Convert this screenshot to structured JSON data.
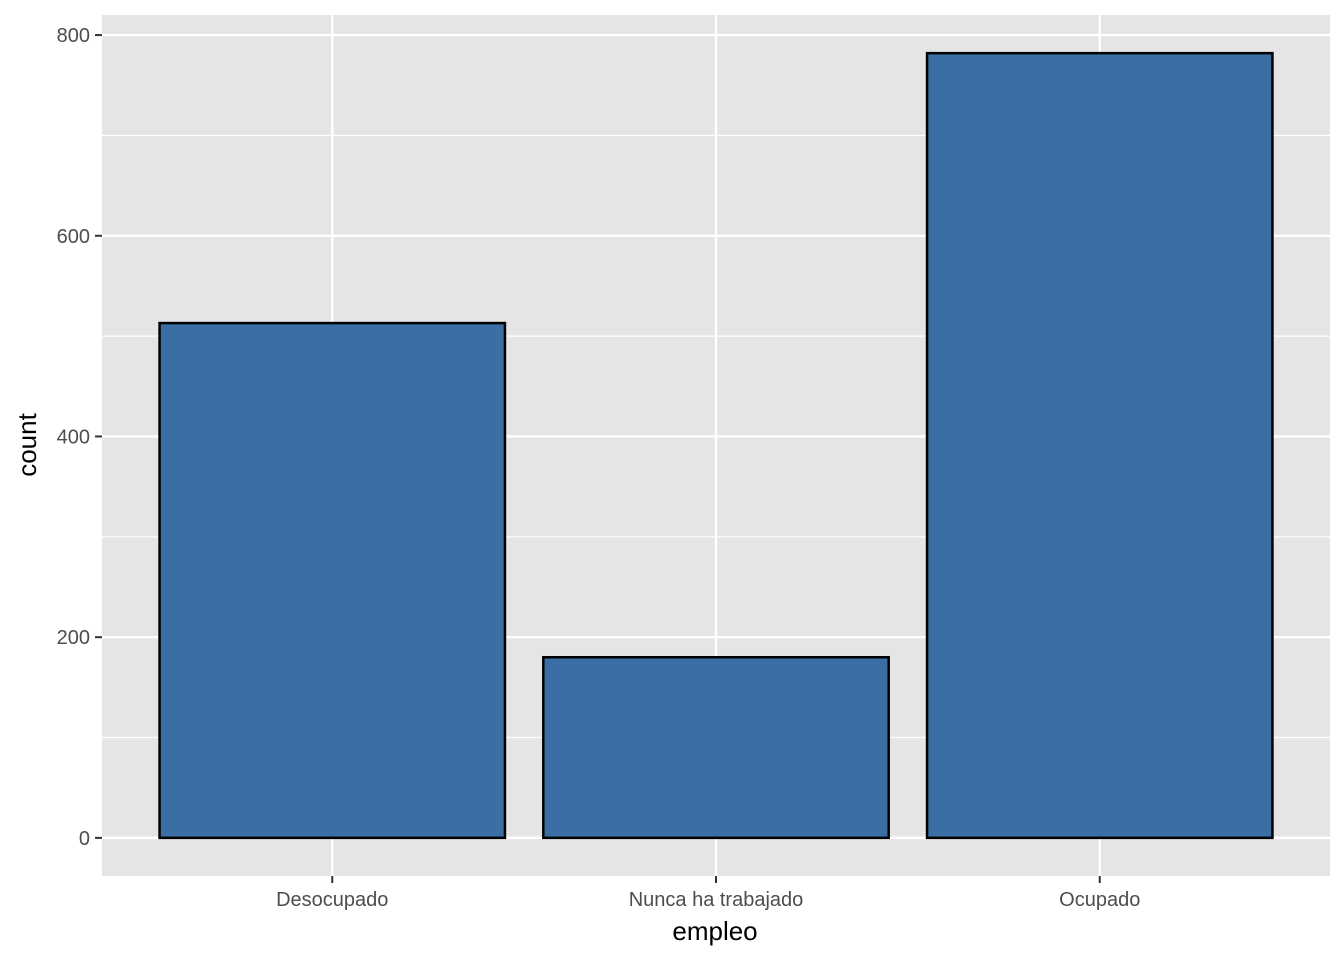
{
  "chart_data": {
    "type": "bar",
    "title": "",
    "xlabel": "empleo",
    "ylabel": "count",
    "categories": [
      "Desocupado",
      "Nunca ha trabajado",
      "Ocupado"
    ],
    "values": [
      513,
      180,
      782
    ],
    "ylim": [
      -38,
      820
    ],
    "y_ticks": [
      0,
      200,
      400,
      600,
      800
    ],
    "y_tick_labels": [
      "0",
      "200",
      "400",
      "600",
      "800"
    ],
    "y_minor_ticks": [
      100,
      300,
      500,
      700
    ],
    "grid": true,
    "legend": "none",
    "colors": {
      "bar_fill": "#3a6ea5",
      "bar_stroke": "#000000",
      "panel_background": "#e5e5e5",
      "grid": "#ffffff",
      "tick_text": "#4d4d4d",
      "axis_title": "#000000"
    }
  }
}
